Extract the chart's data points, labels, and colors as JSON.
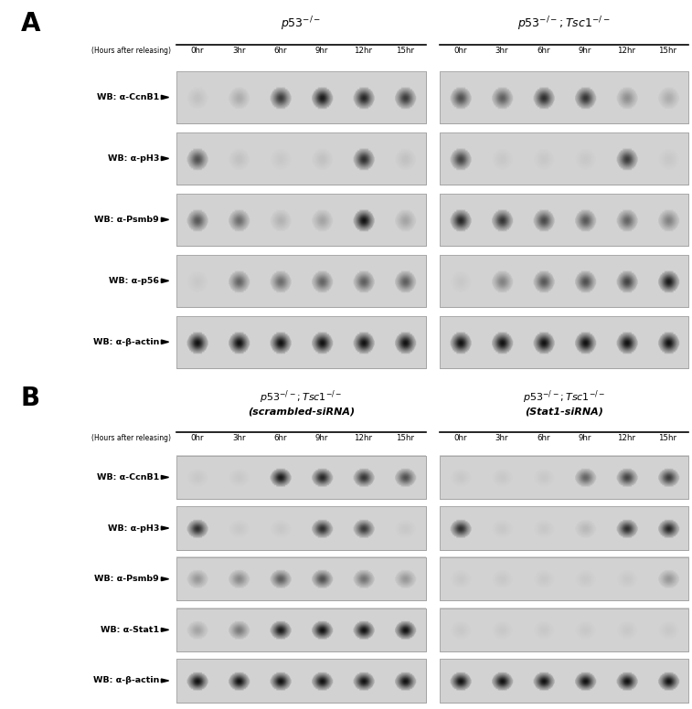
{
  "fig_width": 7.57,
  "fig_height": 7.76,
  "bg_color": "#ffffff",
  "panel_A": {
    "label": "A",
    "group1_title": "$p53^{-/-}$",
    "group2_title": "$p53^{-/-};Tsc1^{-/-}$",
    "hours_label": "(Hours after releasing)",
    "time_points": [
      "0hr",
      "3hr",
      "6hr",
      "9hr",
      "12hr",
      "15hr"
    ],
    "rows": [
      {
        "label": "WB: α-CcnB1",
        "group1": [
          0.08,
          0.18,
          0.72,
          0.88,
          0.82,
          0.72
        ],
        "group2": [
          0.62,
          0.55,
          0.78,
          0.75,
          0.32,
          0.18
        ]
      },
      {
        "label": "WB: α-pH3",
        "group1": [
          0.62,
          0.08,
          0.05,
          0.08,
          0.78,
          0.08
        ],
        "group2": [
          0.68,
          0.05,
          0.05,
          0.05,
          0.72,
          0.05
        ]
      },
      {
        "label": "WB: α-Psmb9",
        "group1": [
          0.58,
          0.48,
          0.15,
          0.22,
          0.92,
          0.22
        ],
        "group2": [
          0.82,
          0.75,
          0.65,
          0.58,
          0.52,
          0.38
        ]
      },
      {
        "label": "WB: α-p56",
        "group1": [
          0.05,
          0.52,
          0.48,
          0.52,
          0.55,
          0.55
        ],
        "group2": [
          0.05,
          0.38,
          0.58,
          0.62,
          0.68,
          0.88
        ]
      },
      {
        "label": "WB: α-β-actin",
        "group1": [
          0.92,
          0.92,
          0.92,
          0.92,
          0.92,
          0.92
        ],
        "group2": [
          0.92,
          0.92,
          0.92,
          0.92,
          0.92,
          0.92
        ]
      }
    ]
  },
  "panel_B": {
    "label": "B",
    "group1_title_line1": "$p53^{-/-};Tsc1^{-/-}$",
    "group1_title_line2": "(scrambled-siRNA)",
    "group2_title_line1": "$p53^{-/-};Tsc1^{-/-}$",
    "group2_title_line2": "(Stat1-siRNA)",
    "hours_label": "(Hours after releasing)",
    "time_points": [
      "0hr",
      "3hr",
      "6hr",
      "9hr",
      "12hr",
      "15hr"
    ],
    "rows": [
      {
        "label": "WB: α-CcnB1",
        "group1": [
          0.05,
          0.05,
          0.88,
          0.82,
          0.75,
          0.62
        ],
        "group2": [
          0.05,
          0.05,
          0.05,
          0.52,
          0.68,
          0.72
        ]
      },
      {
        "label": "WB: α-pH3",
        "group1": [
          0.78,
          0.05,
          0.05,
          0.78,
          0.72,
          0.05
        ],
        "group2": [
          0.78,
          0.05,
          0.05,
          0.12,
          0.78,
          0.82
        ]
      },
      {
        "label": "WB: α-Psmb9",
        "group1": [
          0.28,
          0.35,
          0.55,
          0.62,
          0.45,
          0.28
        ],
        "group2": [
          0.05,
          0.05,
          0.05,
          0.05,
          0.05,
          0.28
        ]
      },
      {
        "label": "WB: α-Stat1",
        "group1": [
          0.22,
          0.42,
          0.88,
          0.92,
          0.92,
          0.92
        ],
        "group2": [
          0.05,
          0.05,
          0.05,
          0.05,
          0.05,
          0.05
        ]
      },
      {
        "label": "WB: α-β-actin",
        "group1": [
          0.92,
          0.92,
          0.92,
          0.92,
          0.92,
          0.92
        ],
        "group2": [
          0.92,
          0.92,
          0.92,
          0.92,
          0.92,
          0.92
        ]
      }
    ]
  }
}
